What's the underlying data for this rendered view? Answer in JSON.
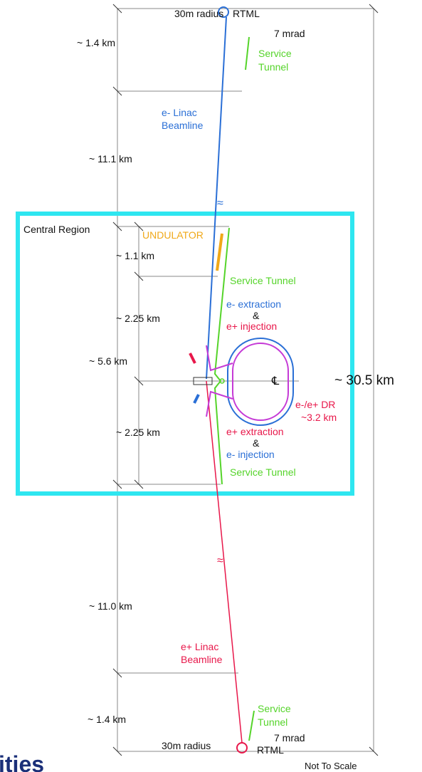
{
  "top": {
    "radius": "30m radius",
    "rtml": "RTML",
    "angle": "7 mrad",
    "service_tunnel": [
      "Service",
      "Tunnel"
    ],
    "length_end": "~ 1.4 km",
    "linac": [
      "e- Linac",
      "Beamline"
    ],
    "length_linac": "~ 11.1 km"
  },
  "central": {
    "title": "Central Region",
    "undulator": "UNDULATOR",
    "length_undulator": "~ 1.1 km",
    "service_tunnel_top": "Service Tunnel",
    "upper_note": [
      "e- extraction",
      "&",
      "e+  injection"
    ],
    "length_upper": "~ 2.25 km",
    "length_total": "~ 5.6 km",
    "centerline": "℄",
    "ring": [
      "e-/e+  DR",
      "~3.2 km"
    ],
    "length_lower": "~ 2.25 km",
    "lower_note": [
      "e+ extraction",
      "&",
      "e-  injection"
    ],
    "service_tunnel_bottom": "Service Tunnel"
  },
  "overall_length": "~ 30.5 km",
  "bottom": {
    "length_linac": "~ 11.0 km",
    "linac": [
      "e+ Linac",
      "Beamline"
    ],
    "service_tunnel": [
      "Service",
      "Tunnel"
    ],
    "length_end": "~ 1.4 km",
    "angle": "7 mrad",
    "radius": "30m radius",
    "rtml": "RTML"
  },
  "footer": {
    "note": "Not To Scale",
    "logo": "ities"
  }
}
